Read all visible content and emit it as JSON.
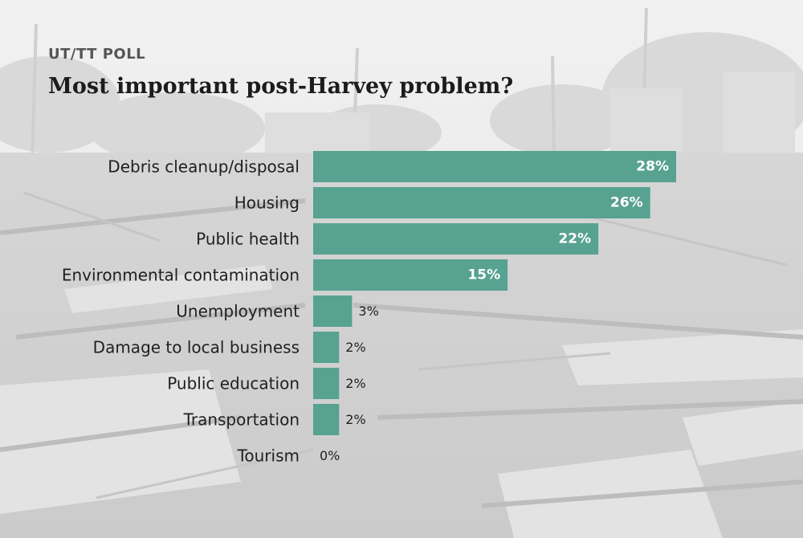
{
  "header": {
    "kicker": "UT/TT POLL",
    "title": "Most important post-Harvey problem?"
  },
  "colors": {
    "bar": "#58a291",
    "label_inside": "#ffffff",
    "label_outside": "#222222",
    "category_text": "#1f1f1f"
  },
  "chart_data": {
    "type": "bar",
    "orientation": "horizontal",
    "title": "Most important post-Harvey problem?",
    "categories": [
      "Debris cleanup/disposal",
      "Housing",
      "Public health",
      "Environmental contamination",
      "Unemployment",
      "Damage to local business",
      "Public education",
      "Transportation",
      "Tourism"
    ],
    "values": [
      28,
      26,
      22,
      15,
      3,
      2,
      2,
      2,
      0
    ],
    "value_labels": [
      "28%",
      "26%",
      "22%",
      "15%",
      "3%",
      "2%",
      "2%",
      "2%",
      "0%"
    ],
    "unit": "%",
    "xlim": [
      0,
      28
    ],
    "grid": false,
    "legend": "none"
  }
}
